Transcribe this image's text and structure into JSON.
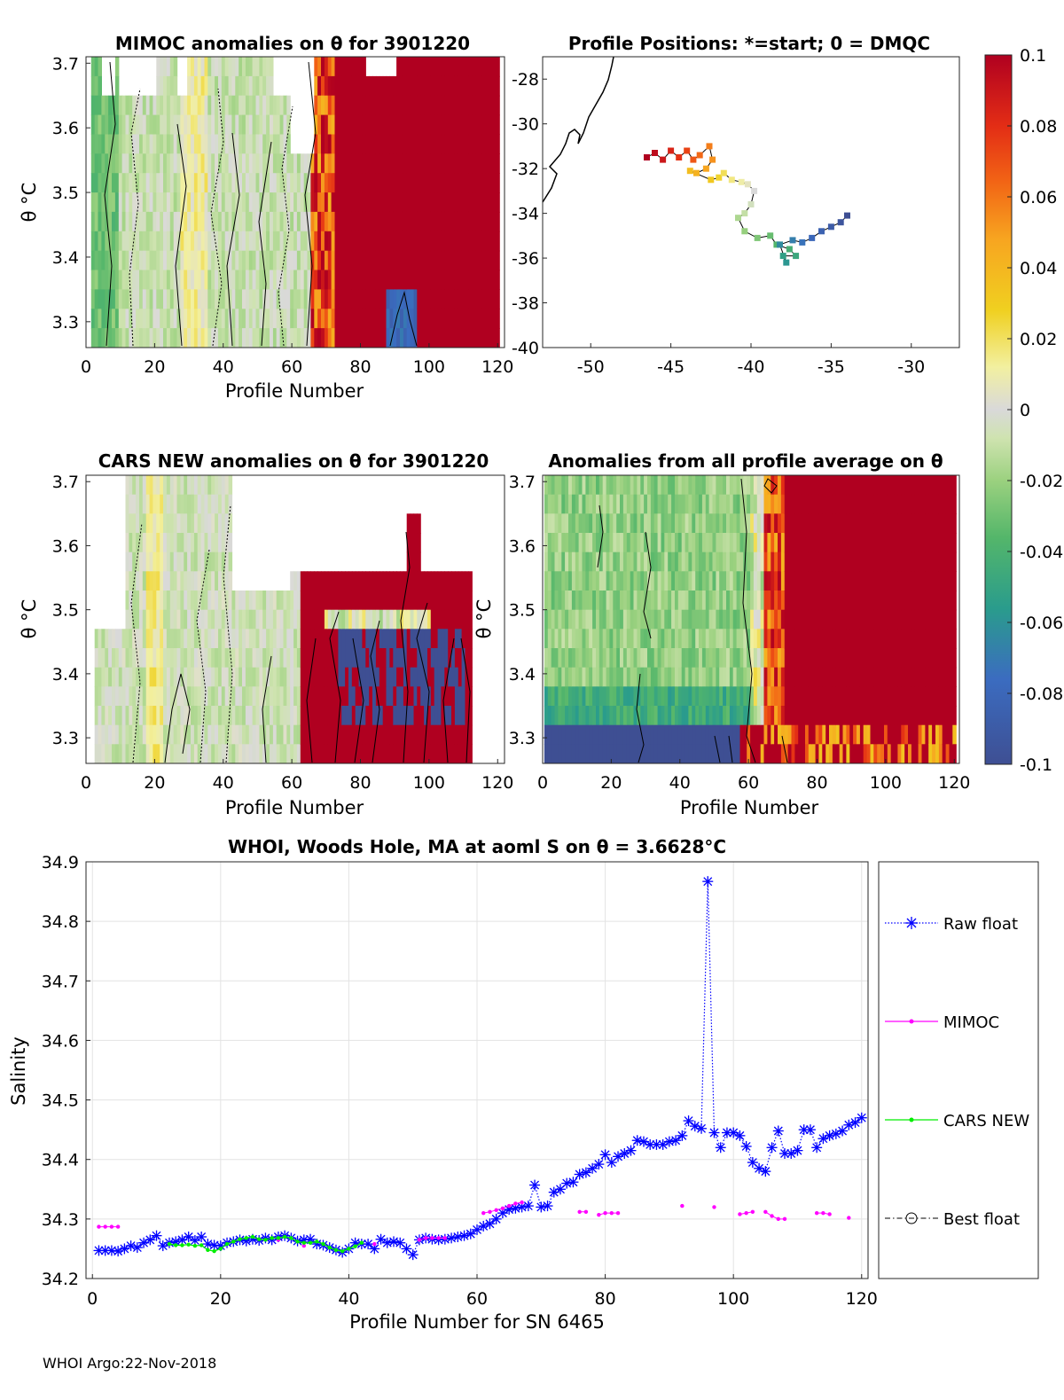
{
  "footer": "WHOI Argo:22-Nov-2018",
  "colorbar": {
    "ticks": [
      "0.1",
      "0.08",
      "0.06",
      "0.04",
      "0.02",
      "0",
      "-0.02",
      "-0.04",
      "-0.06",
      "-0.08",
      "-0.1"
    ],
    "range": [
      -0.1,
      0.1
    ]
  },
  "chart_data": [
    {
      "type": "heatmap",
      "title": "MIMOC anomalies on θ  for 3901220",
      "xlabel": "Profile Number",
      "ylabel": "θ °C",
      "xticks": [
        "0",
        "20",
        "40",
        "60",
        "80",
        "100",
        "120"
      ],
      "yticks": [
        "3.7",
        "3.6",
        "3.5",
        "3.4",
        "3.3"
      ],
      "xlim": [
        0,
        122
      ],
      "ylim": [
        3.26,
        3.71
      ]
    },
    {
      "type": "scatter",
      "title": "Profile Positions: *=start; 0 = DMQC",
      "xticks": [
        "-50",
        "-45",
        "-40",
        "-35",
        "-30"
      ],
      "yticks": [
        "-28",
        "-30",
        "-32",
        "-34",
        "-36",
        "-38",
        "-40"
      ],
      "xlim": [
        -53,
        -27
      ],
      "ylim": [
        -40,
        -27
      ]
    },
    {
      "type": "heatmap",
      "title": "CARS NEW anomalies on θ for 3901220",
      "xlabel": "Profile Number",
      "ylabel": "θ °C",
      "xticks": [
        "0",
        "20",
        "40",
        "60",
        "80",
        "100",
        "120"
      ],
      "yticks": [
        "3.7",
        "3.6",
        "3.5",
        "3.4",
        "3.3"
      ],
      "xlim": [
        0,
        122
      ],
      "ylim": [
        3.26,
        3.71
      ]
    },
    {
      "type": "heatmap",
      "title": "Anomalies from all profile average on θ",
      "xlabel": "Profile Number",
      "ylabel": "θ °C",
      "xticks": [
        "0",
        "20",
        "40",
        "60",
        "80",
        "100",
        "120"
      ],
      "yticks": [
        "3.7",
        "3.6",
        "3.5",
        "3.4",
        "3.3"
      ],
      "xlim": [
        0,
        122
      ],
      "ylim": [
        3.26,
        3.71
      ]
    },
    {
      "type": "line",
      "title": "WHOI, Woods Hole, MA at aoml S on θ = 3.6628°C",
      "xlabel": "Profile Number for SN 6465",
      "ylabel": "Salinity",
      "xticks": [
        "0",
        "20",
        "40",
        "60",
        "80",
        "100",
        "120"
      ],
      "yticks": [
        "34.9",
        "34.8",
        "34.7",
        "34.6",
        "34.5",
        "34.4",
        "34.3",
        "34.2"
      ],
      "xlim": [
        -1,
        121
      ],
      "ylim": [
        34.2,
        34.9
      ],
      "legend": [
        "Raw float",
        "MIMOC",
        "CARS NEW",
        "Best float"
      ],
      "series": [
        {
          "name": "Raw float",
          "x": [
            1,
            2,
            3,
            4,
            5,
            6,
            7,
            8,
            9,
            10,
            11,
            12,
            13,
            14,
            15,
            16,
            17,
            18,
            19,
            20,
            21,
            22,
            23,
            24,
            25,
            26,
            27,
            28,
            29,
            30,
            31,
            32,
            33,
            34,
            35,
            36,
            37,
            38,
            39,
            40,
            41,
            42,
            43,
            44,
            45,
            46,
            47,
            48,
            49,
            50,
            51,
            52,
            53,
            54,
            55,
            56,
            57,
            58,
            59,
            60,
            61,
            62,
            63,
            64,
            65,
            66,
            67,
            68,
            69,
            70,
            71,
            72,
            73,
            74,
            75,
            76,
            77,
            78,
            79,
            80,
            81,
            82,
            83,
            84,
            85,
            86,
            87,
            88,
            89,
            90,
            91,
            92,
            93,
            94,
            95,
            96,
            97,
            98,
            99,
            100,
            101,
            102,
            103,
            104,
            105,
            106,
            107,
            108,
            109,
            110,
            111,
            112,
            113,
            114,
            115,
            116,
            117,
            118,
            119,
            120
          ],
          "values": [
            34.247,
            34.247,
            34.247,
            34.246,
            34.25,
            34.255,
            34.252,
            34.26,
            34.265,
            34.272,
            34.255,
            34.26,
            34.262,
            34.265,
            34.27,
            34.264,
            34.27,
            34.258,
            34.256,
            34.255,
            34.26,
            34.262,
            34.265,
            34.263,
            34.266,
            34.264,
            34.268,
            34.265,
            34.27,
            34.272,
            34.268,
            34.263,
            34.265,
            34.266,
            34.258,
            34.256,
            34.252,
            34.248,
            34.244,
            34.25,
            34.26,
            34.258,
            34.258,
            34.25,
            34.266,
            34.26,
            34.262,
            34.26,
            34.25,
            34.24,
            34.265,
            34.268,
            34.266,
            34.265,
            34.266,
            34.268,
            34.27,
            34.272,
            34.275,
            34.282,
            34.288,
            34.292,
            34.3,
            34.31,
            34.316,
            34.318,
            34.32,
            34.322,
            34.357,
            34.32,
            34.322,
            34.345,
            34.35,
            34.36,
            34.362,
            34.375,
            34.378,
            34.385,
            34.392,
            34.408,
            34.395,
            34.405,
            34.41,
            34.415,
            34.432,
            34.43,
            34.425,
            34.425,
            34.425,
            34.43,
            34.432,
            34.44,
            34.465,
            34.456,
            34.452,
            34.867,
            34.445,
            34.42,
            34.445,
            34.445,
            34.44,
            34.422,
            34.395,
            34.385,
            34.38,
            34.42,
            34.448,
            34.41,
            34.41,
            34.415,
            34.45,
            34.45,
            34.42,
            34.435,
            34.44,
            34.443,
            34.448,
            34.458,
            34.462,
            34.47
          ]
        },
        {
          "name": "MIMOC",
          "x": [
            1,
            2,
            3,
            4,
            29,
            33,
            44,
            51,
            52,
            53,
            54,
            55,
            61,
            62,
            63,
            64,
            65,
            66,
            67,
            76,
            77,
            79,
            80,
            81,
            82,
            92,
            97,
            101,
            102,
            103,
            105,
            106,
            107,
            108,
            113,
            114,
            115,
            118
          ],
          "values": [
            34.287,
            34.287,
            34.287,
            34.287,
            34.265,
            34.255,
            34.258,
            34.265,
            34.268,
            34.268,
            34.268,
            34.268,
            34.31,
            34.312,
            34.315,
            34.318,
            34.322,
            34.326,
            34.328,
            34.312,
            34.312,
            34.307,
            34.31,
            34.31,
            34.31,
            34.322,
            34.32,
            34.308,
            34.31,
            34.312,
            34.312,
            34.305,
            34.3,
            34.3,
            34.31,
            34.31,
            34.308,
            34.302
          ]
        },
        {
          "name": "CARS NEW",
          "x": [
            12,
            13,
            14,
            15,
            16,
            17,
            18,
            19,
            20,
            21,
            22,
            23,
            24,
            25,
            26,
            27,
            28,
            29,
            30,
            31,
            32,
            33,
            34,
            35,
            36,
            37,
            38,
            39,
            40,
            41,
            42
          ],
          "values": [
            34.258,
            34.256,
            34.256,
            34.257,
            34.255,
            34.256,
            34.248,
            34.246,
            34.25,
            34.258,
            34.262,
            34.266,
            34.268,
            34.27,
            34.266,
            34.265,
            34.268,
            34.268,
            34.27,
            34.268,
            34.262,
            34.26,
            34.26,
            34.262,
            34.258,
            34.252,
            34.248,
            34.246,
            34.25,
            34.254,
            34.26
          ]
        },
        {
          "name": "Best float",
          "x": [],
          "values": []
        }
      ]
    }
  ]
}
